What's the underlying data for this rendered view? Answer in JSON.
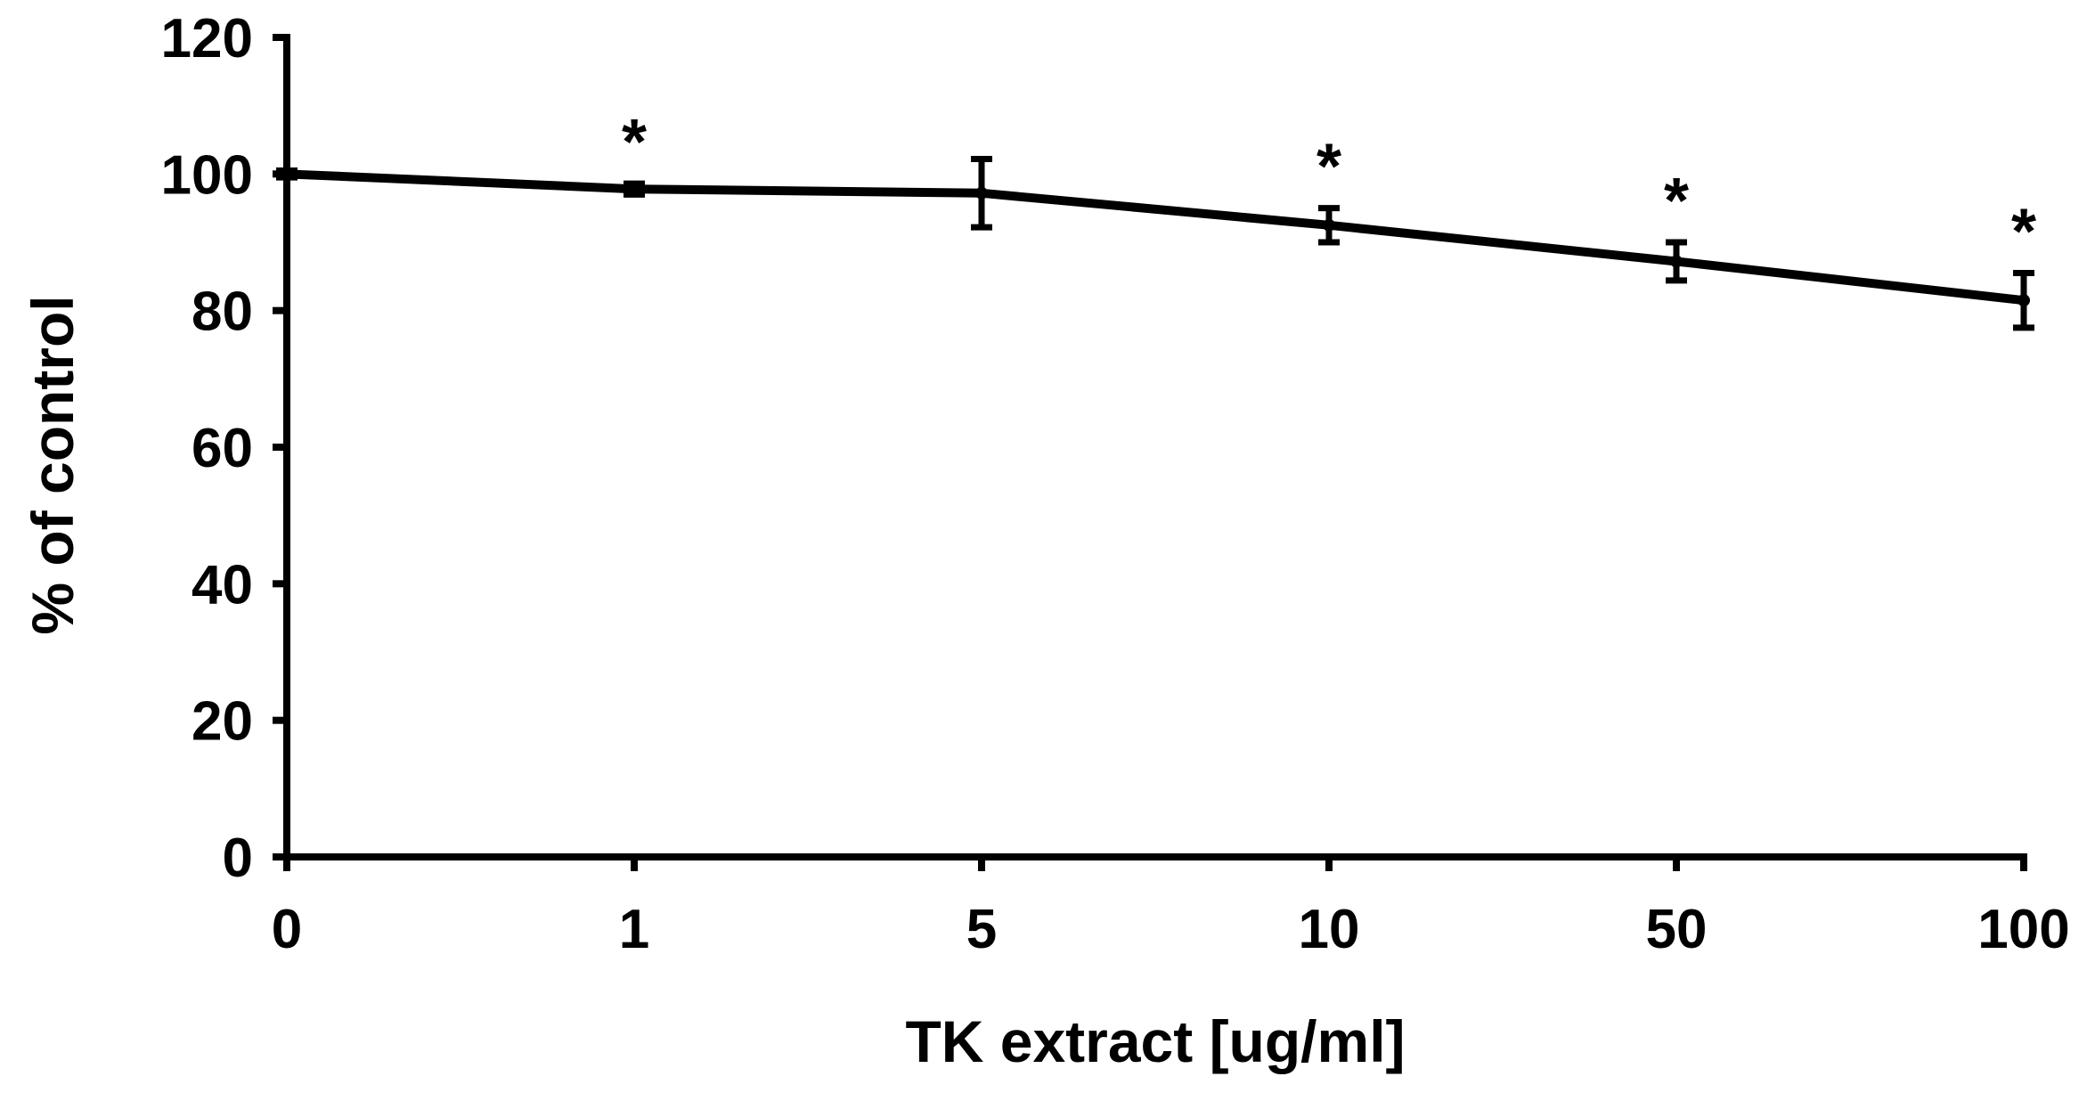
{
  "chart_data": {
    "type": "line",
    "title": "",
    "xlabel": "TK extract [ug/ml]",
    "ylabel": "% of control",
    "categories": [
      "0",
      "1",
      "5",
      "10",
      "50",
      "100"
    ],
    "series": [
      {
        "name": "% of control",
        "values": [
          100,
          97.8,
          97.2,
          92.5,
          87.2,
          81.5
        ],
        "errors": [
          0.5,
          0.8,
          5.0,
          2.5,
          2.8,
          4.0
        ],
        "significant": [
          false,
          true,
          false,
          true,
          true,
          true
        ]
      }
    ],
    "significance_marker": "*",
    "ylim": [
      0,
      120
    ],
    "yticks": [
      0,
      20,
      40,
      60,
      80,
      100,
      120
    ],
    "grid": false,
    "legend": "none"
  }
}
